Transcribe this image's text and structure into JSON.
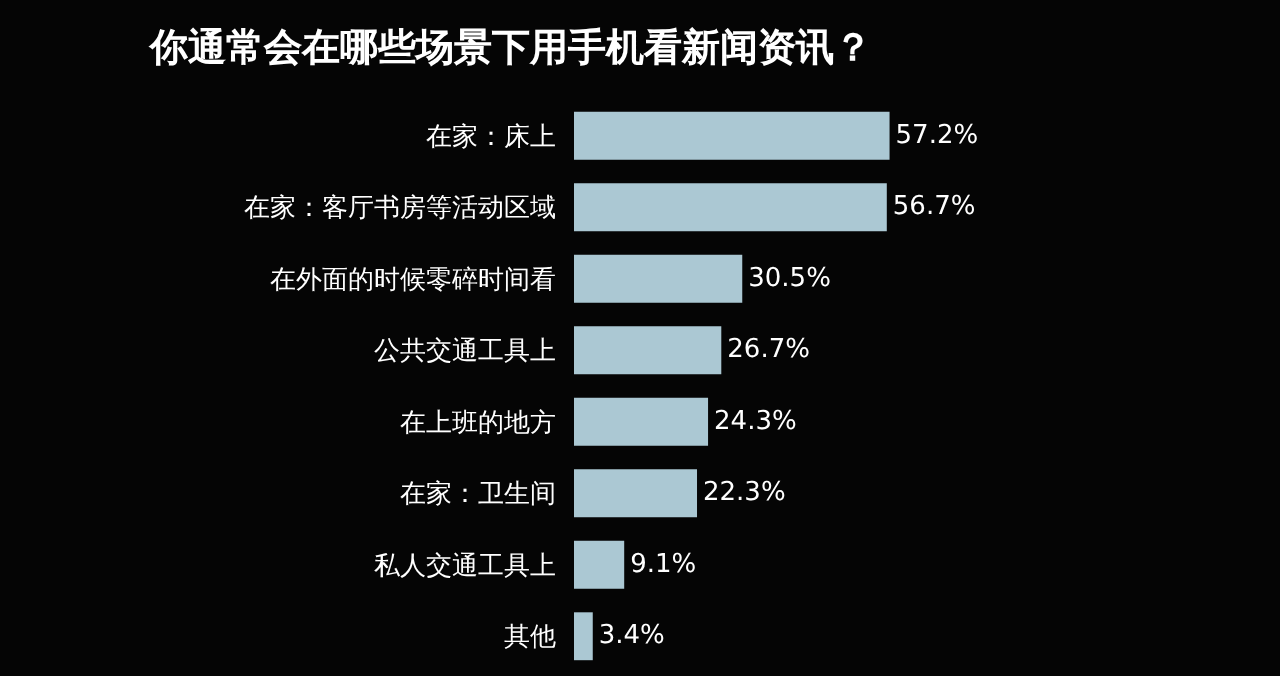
{
  "chart_data": {
    "type": "bar",
    "orientation": "horizontal",
    "title": "你通常会在哪些场景下用手机看新闻资讯？",
    "categories": [
      "在家：床上",
      "在家：客厅书房等活动区域",
      "在外面的时候零碎时间看",
      "公共交通工具上",
      "在上班的地方",
      "在家：卫生间",
      "私人交通工具上",
      "其他"
    ],
    "values": [
      57.2,
      56.7,
      30.5,
      26.7,
      24.3,
      22.3,
      9.1,
      3.4
    ],
    "value_labels": [
      "57.2%",
      "56.7%",
      "30.5%",
      "26.7%",
      "24.3%",
      "22.3%",
      "9.1%",
      "3.4%"
    ],
    "color": "#abc8d3",
    "grid": false,
    "legend": false
  }
}
